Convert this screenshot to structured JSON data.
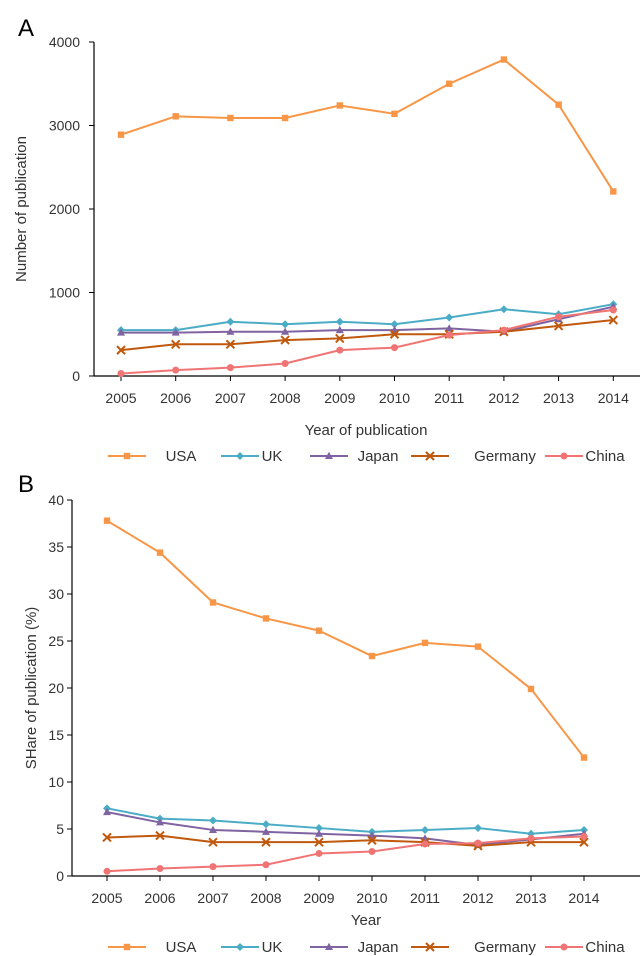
{
  "chart_data": [
    {
      "type": "line",
      "panel_label": "A",
      "xlabel": "Year of publication",
      "ylabel": "Number  of publication",
      "ylim": [
        0,
        4000
      ],
      "yticks": [
        "0",
        "1000",
        "2000",
        "3000",
        "4000"
      ],
      "grid": false,
      "legend_position": "bottom",
      "categories": [
        "2005",
        "2006",
        "2007",
        "2008",
        "2009",
        "2010",
        "2011",
        "2012",
        "2013",
        "2014"
      ],
      "series": [
        {
          "name": "USA",
          "color": "#F79646",
          "marker": "square",
          "values": [
            2890,
            3110,
            3090,
            3090,
            3240,
            3140,
            3500,
            3790,
            3250,
            2210
          ]
        },
        {
          "name": "UK",
          "color": "#4BACC6",
          "marker": "diamond",
          "values": [
            550,
            550,
            650,
            620,
            650,
            620,
            700,
            800,
            740,
            860
          ]
        },
        {
          "name": "Japan",
          "color": "#8064A2",
          "marker": "triangle",
          "values": [
            520,
            520,
            530,
            530,
            550,
            550,
            570,
            530,
            680,
            830
          ]
        },
        {
          "name": "Germany",
          "color": "#C0590D",
          "marker": "x",
          "values": [
            310,
            380,
            380,
            430,
            450,
            500,
            500,
            530,
            600,
            670
          ]
        },
        {
          "name": "China",
          "color": "#F07474",
          "marker": "circle",
          "values": [
            30,
            70,
            100,
            150,
            310,
            340,
            490,
            550,
            710,
            790
          ]
        }
      ]
    },
    {
      "type": "line",
      "panel_label": "B",
      "xlabel": "Year",
      "ylabel": "SHare of publication  (%)",
      "ylim": [
        0,
        40
      ],
      "yticks": [
        "0",
        "5",
        "10",
        "15",
        "20",
        "25",
        "30",
        "35",
        "40"
      ],
      "grid": false,
      "legend_position": "bottom",
      "categories": [
        "2005",
        "2006",
        "2007",
        "2008",
        "2009",
        "2010",
        "2011",
        "2012",
        "2013",
        "2014"
      ],
      "series": [
        {
          "name": "USA",
          "color": "#F79646",
          "marker": "square",
          "values": [
            37.8,
            34.4,
            29.1,
            27.4,
            26.1,
            23.4,
            24.8,
            24.4,
            19.9,
            12.6
          ]
        },
        {
          "name": "UK",
          "color": "#4BACC6",
          "marker": "diamond",
          "values": [
            7.2,
            6.1,
            5.9,
            5.5,
            5.1,
            4.7,
            4.9,
            5.1,
            4.5,
            4.9
          ]
        },
        {
          "name": "Japan",
          "color": "#8064A2",
          "marker": "triangle",
          "values": [
            6.8,
            5.7,
            4.9,
            4.7,
            4.5,
            4.3,
            4.0,
            3.3,
            3.9,
            4.5
          ]
        },
        {
          "name": "Germany",
          "color": "#C0590D",
          "marker": "x",
          "values": [
            4.1,
            4.3,
            3.6,
            3.6,
            3.6,
            3.8,
            3.6,
            3.2,
            3.6,
            3.6
          ]
        },
        {
          "name": "China",
          "color": "#F07474",
          "marker": "circle",
          "values": [
            0.5,
            0.8,
            1.0,
            1.2,
            2.4,
            2.6,
            3.4,
            3.5,
            4.0,
            4.2
          ]
        }
      ]
    }
  ]
}
